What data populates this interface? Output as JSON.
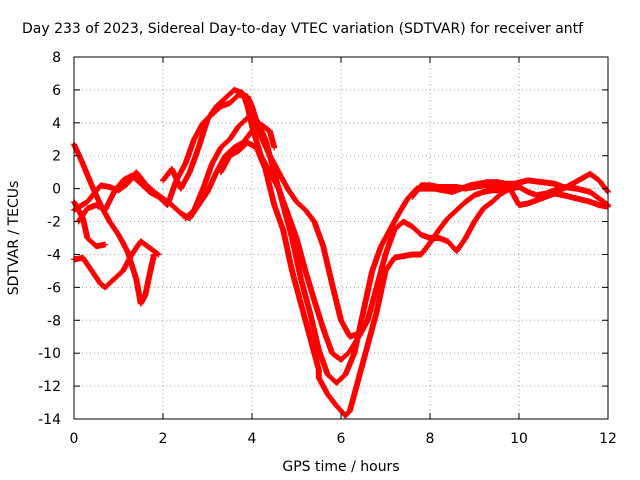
{
  "chart_data": {
    "type": "scatter",
    "title": "Day 233 of 2023, Sidereal Day-to-day VTEC variation (SDTVAR) for receiver antf",
    "xlabel": "GPS time / hours",
    "ylabel": "SDTVAR / TECUs",
    "xlim": [
      0,
      12
    ],
    "ylim": [
      -14,
      8
    ],
    "x_ticks": [
      "0",
      "2",
      "4",
      "6",
      "8",
      "10",
      "12"
    ],
    "y_ticks": [
      "8",
      "6",
      "4",
      "2",
      "0",
      "-2",
      "-4",
      "-6",
      "-8",
      "-10",
      "-12",
      "-14"
    ],
    "grid": true,
    "marker": "plus",
    "color": "#ff0000",
    "series": [
      {
        "points": [
          [
            0.0,
            -4.3
          ],
          [
            0.2,
            -4.2
          ],
          [
            0.4,
            -5.0
          ],
          [
            0.6,
            -5.8
          ],
          [
            0.7,
            -6.0
          ],
          [
            0.9,
            -5.5
          ],
          [
            1.1,
            -5.0
          ],
          [
            1.3,
            -4.0
          ],
          [
            1.5,
            -3.2
          ],
          [
            1.7,
            -3.6
          ],
          [
            1.9,
            -4.0
          ]
        ]
      },
      {
        "points": [
          [
            0.0,
            2.7
          ],
          [
            0.2,
            1.5
          ],
          [
            0.4,
            0.2
          ],
          [
            0.6,
            -1.0
          ],
          [
            0.8,
            -2.0
          ],
          [
            1.0,
            -2.8
          ],
          [
            1.2,
            -3.8
          ],
          [
            1.4,
            -5.5
          ],
          [
            1.5,
            -7.0
          ],
          [
            1.6,
            -6.5
          ],
          [
            1.7,
            -5.2
          ],
          [
            1.8,
            -4.0
          ]
        ]
      },
      {
        "points": [
          [
            0.0,
            -0.8
          ],
          [
            0.2,
            -1.8
          ],
          [
            0.3,
            -3.0
          ],
          [
            0.5,
            -3.5
          ],
          [
            0.7,
            -3.4
          ]
        ]
      },
      {
        "points": [
          [
            0.0,
            -1.3
          ],
          [
            0.3,
            -0.8
          ],
          [
            0.6,
            0.2
          ],
          [
            0.8,
            0.1
          ],
          [
            1.0,
            -0.1
          ],
          [
            1.2,
            0.3
          ],
          [
            1.4,
            1.0
          ],
          [
            1.6,
            0.3
          ],
          [
            1.8,
            -0.2
          ],
          [
            2.0,
            -0.6
          ],
          [
            2.2,
            -1.0
          ],
          [
            2.4,
            -1.5
          ],
          [
            2.6,
            -1.8
          ],
          [
            2.8,
            -1.0
          ],
          [
            3.0,
            -0.2
          ],
          [
            3.2,
            1.0
          ],
          [
            3.4,
            2.0
          ],
          [
            3.6,
            2.5
          ],
          [
            3.8,
            2.8
          ],
          [
            4.0,
            3.5
          ],
          [
            4.2,
            3.9
          ],
          [
            4.4,
            3.5
          ],
          [
            4.5,
            2.5
          ]
        ]
      },
      {
        "points": [
          [
            0.1,
            -2.0
          ],
          [
            0.3,
            -1.2
          ],
          [
            0.5,
            -1.0
          ],
          [
            0.7,
            -1.3
          ],
          [
            0.9,
            -0.2
          ],
          [
            1.1,
            0.5
          ],
          [
            1.3,
            0.8
          ],
          [
            1.5,
            0.3
          ],
          [
            1.7,
            -0.2
          ],
          [
            1.9,
            -0.5
          ],
          [
            2.1,
            -1.0
          ],
          [
            2.3,
            0.5
          ],
          [
            2.5,
            1.5
          ],
          [
            2.7,
            3.0
          ],
          [
            2.9,
            4.0
          ],
          [
            3.1,
            4.5
          ],
          [
            3.3,
            5.0
          ],
          [
            3.5,
            5.2
          ],
          [
            3.7,
            5.7
          ],
          [
            3.9,
            5.6
          ],
          [
            4.0,
            5.0
          ],
          [
            4.2,
            3.2
          ],
          [
            4.4,
            2.0
          ],
          [
            4.6,
            1.0
          ],
          [
            4.8,
            0.0
          ],
          [
            5.0,
            -0.8
          ],
          [
            5.2,
            -1.3
          ],
          [
            5.4,
            -2.0
          ],
          [
            5.6,
            -3.5
          ],
          [
            5.8,
            -5.8
          ],
          [
            6.0,
            -8.0
          ],
          [
            6.2,
            -9.0
          ],
          [
            6.4,
            -8.8
          ]
        ]
      },
      {
        "points": [
          [
            2.0,
            0.5
          ],
          [
            2.2,
            1.2
          ],
          [
            2.4,
            0.0
          ],
          [
            2.6,
            1.0
          ],
          [
            2.8,
            2.5
          ],
          [
            3.0,
            4.2
          ],
          [
            3.2,
            5.0
          ],
          [
            3.4,
            5.5
          ],
          [
            3.6,
            6.0
          ],
          [
            3.8,
            5.8
          ],
          [
            3.9,
            5.0
          ],
          [
            4.0,
            3.8
          ],
          [
            4.2,
            2.0
          ],
          [
            4.4,
            1.0
          ],
          [
            4.6,
            0.0
          ],
          [
            4.8,
            -1.5
          ],
          [
            5.0,
            -3.0
          ],
          [
            5.2,
            -5.0
          ],
          [
            5.4,
            -6.8
          ],
          [
            5.6,
            -8.5
          ],
          [
            5.8,
            -10.0
          ],
          [
            6.0,
            -10.4
          ],
          [
            6.2,
            -9.9
          ],
          [
            6.4,
            -9.0
          ],
          [
            6.6,
            -8.0
          ],
          [
            6.8,
            -6.0
          ],
          [
            7.0,
            -4.0
          ],
          [
            7.2,
            -2.5
          ],
          [
            7.4,
            -2.0
          ],
          [
            7.6,
            -2.3
          ],
          [
            7.8,
            -2.8
          ],
          [
            8.0,
            -3.0
          ],
          [
            8.2,
            -3.0
          ],
          [
            8.4,
            -3.2
          ],
          [
            8.6,
            -3.8
          ],
          [
            8.8,
            -3.0
          ],
          [
            9.0,
            -2.0
          ],
          [
            9.2,
            -1.2
          ],
          [
            9.4,
            -0.8
          ],
          [
            9.6,
            -0.3
          ],
          [
            9.8,
            0.0
          ],
          [
            10.0,
            0.1
          ],
          [
            10.2,
            -0.2
          ],
          [
            10.4,
            -0.4
          ],
          [
            10.6,
            -0.3
          ],
          [
            10.8,
            -0.1
          ],
          [
            11.0,
            0.0
          ],
          [
            11.2,
            0.3
          ],
          [
            11.4,
            0.6
          ],
          [
            11.6,
            0.9
          ],
          [
            11.8,
            0.5
          ],
          [
            12.0,
            -0.2
          ]
        ]
      },
      {
        "points": [
          [
            2.5,
            -1.8
          ],
          [
            2.7,
            -1.3
          ],
          [
            2.9,
            0.0
          ],
          [
            3.1,
            1.5
          ],
          [
            3.3,
            2.5
          ],
          [
            3.5,
            3.0
          ],
          [
            3.7,
            3.8
          ],
          [
            3.9,
            4.3
          ],
          [
            4.1,
            4.2
          ],
          [
            4.3,
            3.0
          ],
          [
            4.5,
            1.0
          ],
          [
            4.7,
            -1.0
          ],
          [
            4.9,
            -3.0
          ],
          [
            5.1,
            -5.5
          ],
          [
            5.3,
            -7.5
          ],
          [
            5.5,
            -9.8
          ],
          [
            5.7,
            -11.3
          ],
          [
            5.9,
            -11.8
          ],
          [
            6.1,
            -11.3
          ],
          [
            6.3,
            -10.0
          ],
          [
            6.5,
            -7.5
          ],
          [
            6.7,
            -5.0
          ],
          [
            6.9,
            -3.5
          ],
          [
            7.1,
            -2.5
          ],
          [
            7.3,
            -1.5
          ],
          [
            7.5,
            -0.6
          ],
          [
            7.7,
            0.0
          ],
          [
            7.9,
            0.0
          ],
          [
            8.1,
            0.0
          ],
          [
            8.3,
            -0.1
          ],
          [
            8.5,
            -0.2
          ],
          [
            8.7,
            0.0
          ],
          [
            8.9,
            0.2
          ],
          [
            9.1,
            0.3
          ],
          [
            9.3,
            0.4
          ],
          [
            9.5,
            0.4
          ],
          [
            9.7,
            0.3
          ],
          [
            9.9,
            0.3
          ],
          [
            10.2,
            0.5
          ],
          [
            10.5,
            0.4
          ],
          [
            10.8,
            0.3
          ],
          [
            11.0,
            0.1
          ],
          [
            11.3,
            0.0
          ],
          [
            11.6,
            -0.2
          ],
          [
            11.8,
            -0.6
          ],
          [
            12.0,
            -1.0
          ]
        ]
      },
      {
        "points": [
          [
            3.3,
            1.0
          ],
          [
            3.5,
            2.0
          ],
          [
            3.7,
            2.3
          ],
          [
            3.9,
            2.8
          ],
          [
            4.1,
            2.5
          ],
          [
            4.3,
            1.2
          ],
          [
            4.5,
            -1.0
          ],
          [
            4.7,
            -2.5
          ],
          [
            4.9,
            -5.0
          ],
          [
            5.1,
            -7.0
          ],
          [
            5.3,
            -9.0
          ],
          [
            5.5,
            -11.0
          ],
          [
            5.5,
            -11.5
          ],
          [
            5.7,
            -12.5
          ],
          [
            5.9,
            -13.2
          ],
          [
            6.1,
            -13.8
          ],
          [
            6.2,
            -13.5
          ],
          [
            6.4,
            -11.5
          ],
          [
            6.6,
            -9.5
          ],
          [
            6.8,
            -7.5
          ],
          [
            7.0,
            -5.0
          ],
          [
            7.2,
            -4.2
          ],
          [
            7.4,
            -4.1
          ],
          [
            7.6,
            -4.0
          ],
          [
            7.8,
            -4.0
          ],
          [
            8.0,
            -3.3
          ],
          [
            8.2,
            -2.5
          ],
          [
            8.4,
            -1.8
          ],
          [
            8.6,
            -1.3
          ],
          [
            8.8,
            -0.8
          ],
          [
            9.0,
            -0.4
          ],
          [
            9.2,
            -0.2
          ],
          [
            9.4,
            -0.1
          ],
          [
            9.6,
            -0.1
          ],
          [
            9.8,
            0.0
          ],
          [
            10.0,
            -1.0
          ],
          [
            10.2,
            -0.9
          ],
          [
            10.4,
            -0.7
          ],
          [
            10.6,
            -0.5
          ],
          [
            10.8,
            -0.3
          ],
          [
            11.0,
            -0.4
          ],
          [
            11.3,
            -0.6
          ],
          [
            11.6,
            -0.8
          ],
          [
            11.8,
            -1.0
          ],
          [
            12.0,
            -1.1
          ]
        ]
      },
      {
        "points": [
          [
            7.6,
            -0.5
          ],
          [
            7.8,
            0.2
          ],
          [
            8.0,
            0.2
          ],
          [
            8.2,
            0.1
          ],
          [
            8.4,
            0.1
          ],
          [
            8.6,
            0.1
          ],
          [
            8.8,
            0.0
          ],
          [
            9.0,
            0.1
          ],
          [
            9.2,
            0.2
          ],
          [
            9.4,
            0.2
          ],
          [
            9.6,
            0.1
          ],
          [
            9.8,
            0.1
          ],
          [
            10.0,
            0.2
          ]
        ]
      }
    ]
  }
}
